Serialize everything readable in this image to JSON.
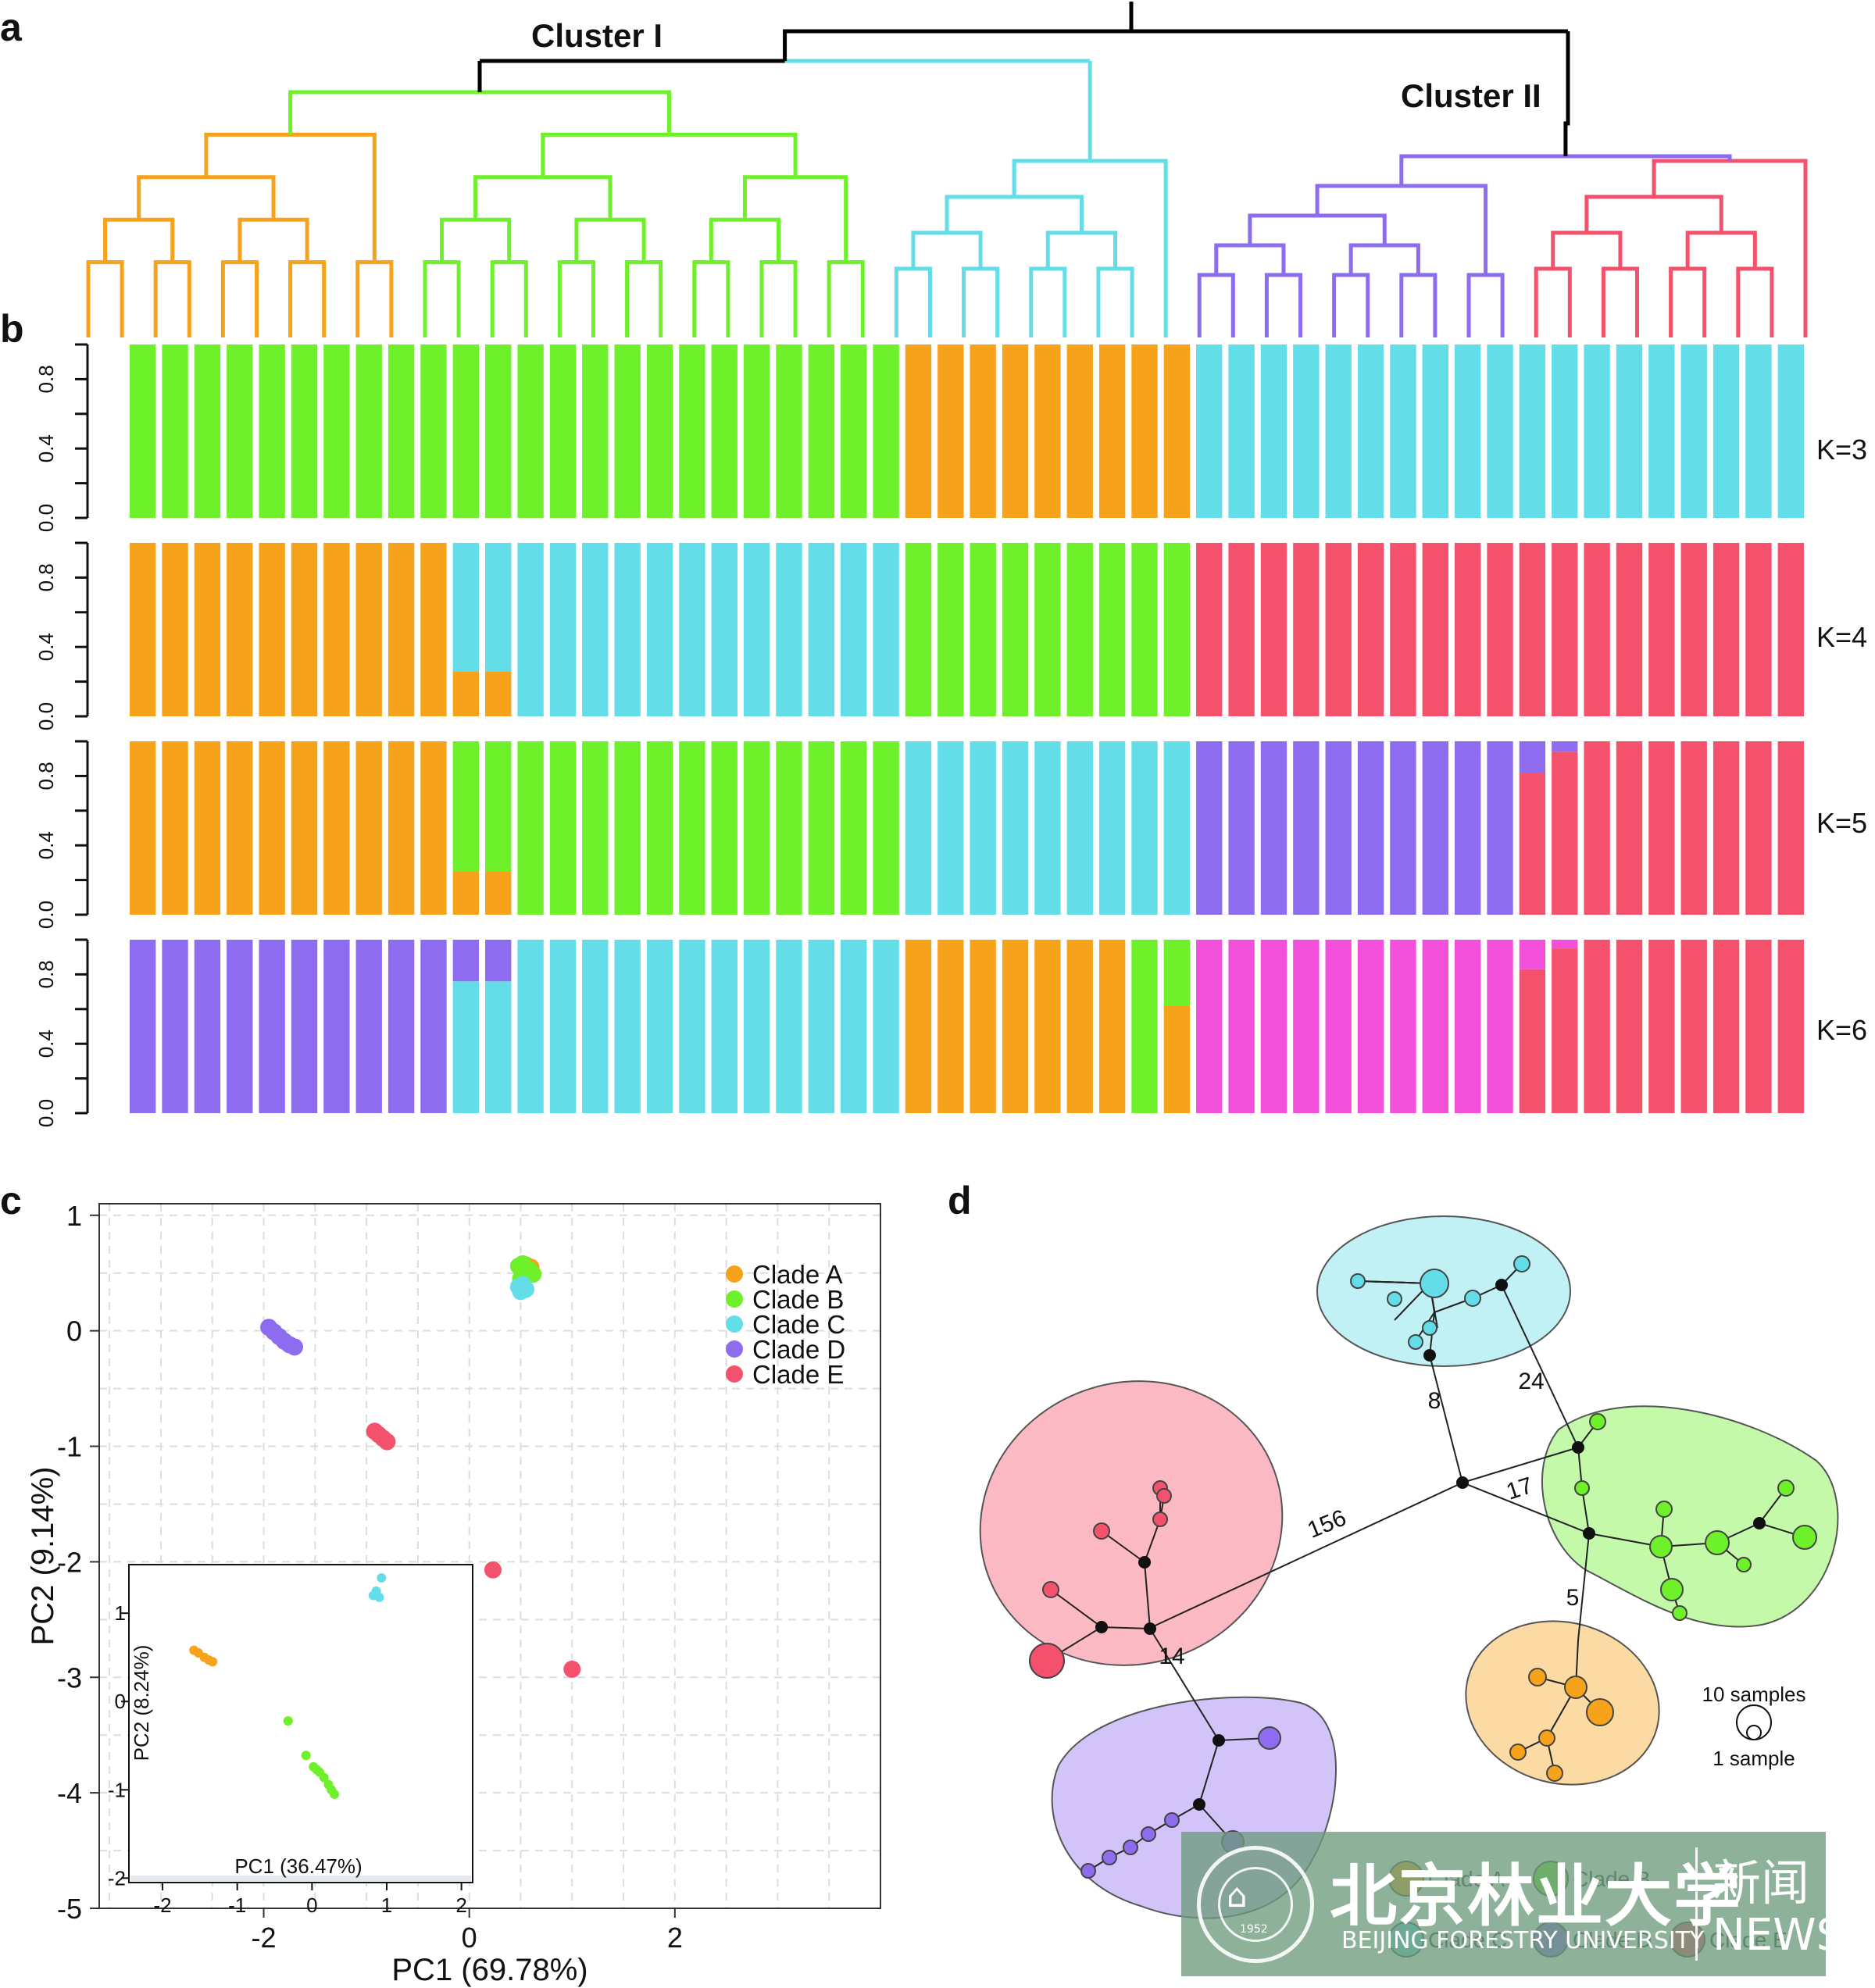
{
  "panel_labels": {
    "a": "a",
    "b": "b",
    "c": "c",
    "d": "d"
  },
  "chart_data": [
    {
      "type": "dendrogram",
      "panel": "a",
      "annotations": [
        "Cluster I",
        "Cluster II"
      ],
      "colors": {
        "orange": "#F7A21B",
        "green": "#6EF12A",
        "cyan": "#63DDE7",
        "purple": "#8E6CF0",
        "red": "#F4516C",
        "black": "#000000"
      },
      "leaf_count": 52
    },
    {
      "type": "bar",
      "panel": "b",
      "stacked": true,
      "ylabel_ticks": [
        "0.0",
        "0.4",
        "0.8"
      ],
      "ylim": [
        0,
        1
      ],
      "samples": 52,
      "rows": [
        {
          "label": "K=3",
          "groups": [
            {
              "n": 10,
              "comps": [
                [
                  "green",
                  1
                ]
              ]
            },
            {
              "n": 14,
              "comps": [
                [
                  "green",
                  1
                ]
              ]
            },
            {
              "n": 9,
              "comps": [
                [
                  "orange",
                  1
                ]
              ]
            },
            {
              "n": 10,
              "comps": [
                [
                  "cyan",
                  1
                ]
              ]
            },
            {
              "n": 9,
              "comps": [
                [
                  "cyan",
                  1
                ]
              ]
            }
          ]
        },
        {
          "label": "K=4",
          "groups": [
            {
              "n": 10,
              "comps": [
                [
                  "orange",
                  1
                ]
              ]
            },
            {
              "n": 2,
              "comps": [
                [
                  "orange",
                  0.26
                ],
                [
                  "cyan",
                  0.74
                ]
              ]
            },
            {
              "n": 12,
              "comps": [
                [
                  "cyan",
                  1
                ]
              ]
            },
            {
              "n": 9,
              "comps": [
                [
                  "green",
                  1
                ]
              ]
            },
            {
              "n": 19,
              "comps": [
                [
                  "red",
                  1
                ]
              ]
            }
          ]
        },
        {
          "label": "K=5",
          "groups": [
            {
              "n": 10,
              "comps": [
                [
                  "orange",
                  1
                ]
              ]
            },
            {
              "n": 2,
              "comps": [
                [
                  "orange",
                  0.25
                ],
                [
                  "green",
                  0.75
                ]
              ]
            },
            {
              "n": 12,
              "comps": [
                [
                  "green",
                  1
                ]
              ]
            },
            {
              "n": 9,
              "comps": [
                [
                  "cyan",
                  1
                ]
              ]
            },
            {
              "n": 10,
              "comps": [
                [
                  "purple",
                  1
                ]
              ]
            },
            {
              "n": 1,
              "comps": [
                [
                  "red",
                  0.82
                ],
                [
                  "purple",
                  0.18
                ]
              ]
            },
            {
              "n": 1,
              "comps": [
                [
                  "red",
                  0.94
                ],
                [
                  "purple",
                  0.06
                ]
              ]
            },
            {
              "n": 7,
              "comps": [
                [
                  "red",
                  1
                ]
              ]
            }
          ]
        },
        {
          "label": "K=6",
          "groups": [
            {
              "n": 10,
              "comps": [
                [
                  "purple",
                  1
                ]
              ]
            },
            {
              "n": 2,
              "comps": [
                [
                  "cyan",
                  0.76
                ],
                [
                  "purple",
                  0.24
                ]
              ]
            },
            {
              "n": 12,
              "comps": [
                [
                  "cyan",
                  1
                ]
              ]
            },
            {
              "n": 7,
              "comps": [
                [
                  "orange",
                  1
                ]
              ]
            },
            {
              "n": 1,
              "comps": [
                [
                  "green",
                  1
                ]
              ]
            },
            {
              "n": 1,
              "comps": [
                [
                  "orange",
                  0.62
                ],
                [
                  "green",
                  0.38
                ]
              ]
            },
            {
              "n": 10,
              "comps": [
                [
                  "magenta",
                  1
                ]
              ]
            },
            {
              "n": 1,
              "comps": [
                [
                  "red",
                  0.83
                ],
                [
                  "magenta",
                  0.17
                ]
              ]
            },
            {
              "n": 1,
              "comps": [
                [
                  "red",
                  0.95
                ],
                [
                  "magenta",
                  0.05
                ]
              ]
            },
            {
              "n": 7,
              "comps": [
                [
                  "red",
                  1
                ]
              ]
            }
          ]
        }
      ],
      "colors": {
        "orange": "#F7A21B",
        "green": "#6EF12A",
        "cyan": "#63DDE7",
        "purple": "#8E6CF0",
        "red": "#F4516C",
        "magenta": "#F250DA"
      }
    },
    {
      "type": "scatter",
      "panel": "c",
      "xlabel": "PC1 (69.78%)",
      "ylabel": "PC2 (9.14%)",
      "xlim": [
        -3.6,
        4.0
      ],
      "ylim": [
        -5.0,
        1.1
      ],
      "xticks": [
        -2,
        0,
        2
      ],
      "yticks": [
        1,
        0,
        -1,
        -2,
        -3,
        -4,
        -5
      ],
      "grid": true,
      "legend_position": "top-right",
      "series": [
        {
          "name": "Clade A",
          "color": "#F7A21B",
          "points": [
            [
              0.55,
              0.57
            ],
            [
              0.6,
              0.55
            ]
          ]
        },
        {
          "name": "Clade B",
          "color": "#6EF12A",
          "points": [
            [
              0.48,
              0.56
            ],
            [
              0.52,
              0.58
            ],
            [
              0.58,
              0.53
            ],
            [
              0.62,
              0.49
            ],
            [
              0.5,
              0.45
            ]
          ]
        },
        {
          "name": "Clade C",
          "color": "#63DDE7",
          "points": [
            [
              0.48,
              0.38
            ],
            [
              0.52,
              0.4
            ],
            [
              0.55,
              0.36
            ],
            [
              0.5,
              0.34
            ]
          ]
        },
        {
          "name": "Clade D",
          "color": "#8E6CF0",
          "points": [
            [
              -1.95,
              0.03
            ],
            [
              -1.9,
              -0.01
            ],
            [
              -1.85,
              -0.05
            ],
            [
              -1.8,
              -0.09
            ],
            [
              -1.75,
              -0.12
            ],
            [
              -1.7,
              -0.14
            ]
          ]
        },
        {
          "name": "Clade E",
          "color": "#F4516C",
          "points": [
            [
              -0.92,
              -0.87
            ],
            [
              -0.88,
              -0.9
            ],
            [
              -0.84,
              -0.93
            ],
            [
              -0.8,
              -0.96
            ],
            [
              0.23,
              -2.07
            ],
            [
              1.0,
              -2.93
            ]
          ]
        }
      ],
      "inset": {
        "xlabel": "PC1 (36.47%)",
        "ylabel": "PC2 (8.24%)",
        "xlim": [
          -2.45,
          2.15
        ],
        "ylim": [
          -2.05,
          1.55
        ],
        "xticks": [
          -2,
          -1,
          0,
          1,
          2
        ],
        "yticks": [
          1,
          0,
          -1,
          -2
        ],
        "series": [
          {
            "name": "Clade A",
            "color": "#F7A21B",
            "points": [
              [
                -1.58,
                0.58
              ],
              [
                -1.52,
                0.55
              ],
              [
                -1.44,
                0.5
              ],
              [
                -1.38,
                0.47
              ],
              [
                -1.33,
                0.45
              ]
            ]
          },
          {
            "name": "Clade B",
            "color": "#6EF12A",
            "points": [
              [
                -0.32,
                -0.22
              ],
              [
                -0.08,
                -0.61
              ],
              [
                0.02,
                -0.74
              ],
              [
                0.06,
                -0.77
              ],
              [
                0.1,
                -0.8
              ],
              [
                0.16,
                -0.86
              ],
              [
                0.22,
                -0.94
              ],
              [
                0.26,
                -1.0
              ],
              [
                0.3,
                -1.05
              ]
            ]
          },
          {
            "name": "Clade C",
            "color": "#63DDE7",
            "points": [
              [
                0.82,
                1.2
              ],
              [
                0.86,
                1.25
              ],
              [
                0.9,
                1.18
              ],
              [
                0.93,
                1.4
              ]
            ]
          }
        ]
      }
    },
    {
      "type": "network",
      "panel": "d",
      "edge_labels": [
        "8",
        "24",
        "17",
        "156",
        "5",
        "14"
      ],
      "size_legend": {
        "large": "10 samples",
        "small": "1 sample"
      },
      "clades": [
        {
          "name": "Clade A",
          "color": "#F7A21B"
        },
        {
          "name": "Clade B",
          "color": "#6EF12A"
        },
        {
          "name": "Clade C",
          "color": "#63DDE7"
        },
        {
          "name": "Clade D",
          "color": "#8E6CF0"
        },
        {
          "name": "Clade E",
          "color": "#F4516C"
        }
      ]
    }
  ],
  "watermark": {
    "name": "北京林业大学",
    "english": "BEIJING FORESTRY UNIVERSITY",
    "news_cn": "新闻",
    "news_en": "NEWS",
    "seal_year": "1952"
  }
}
